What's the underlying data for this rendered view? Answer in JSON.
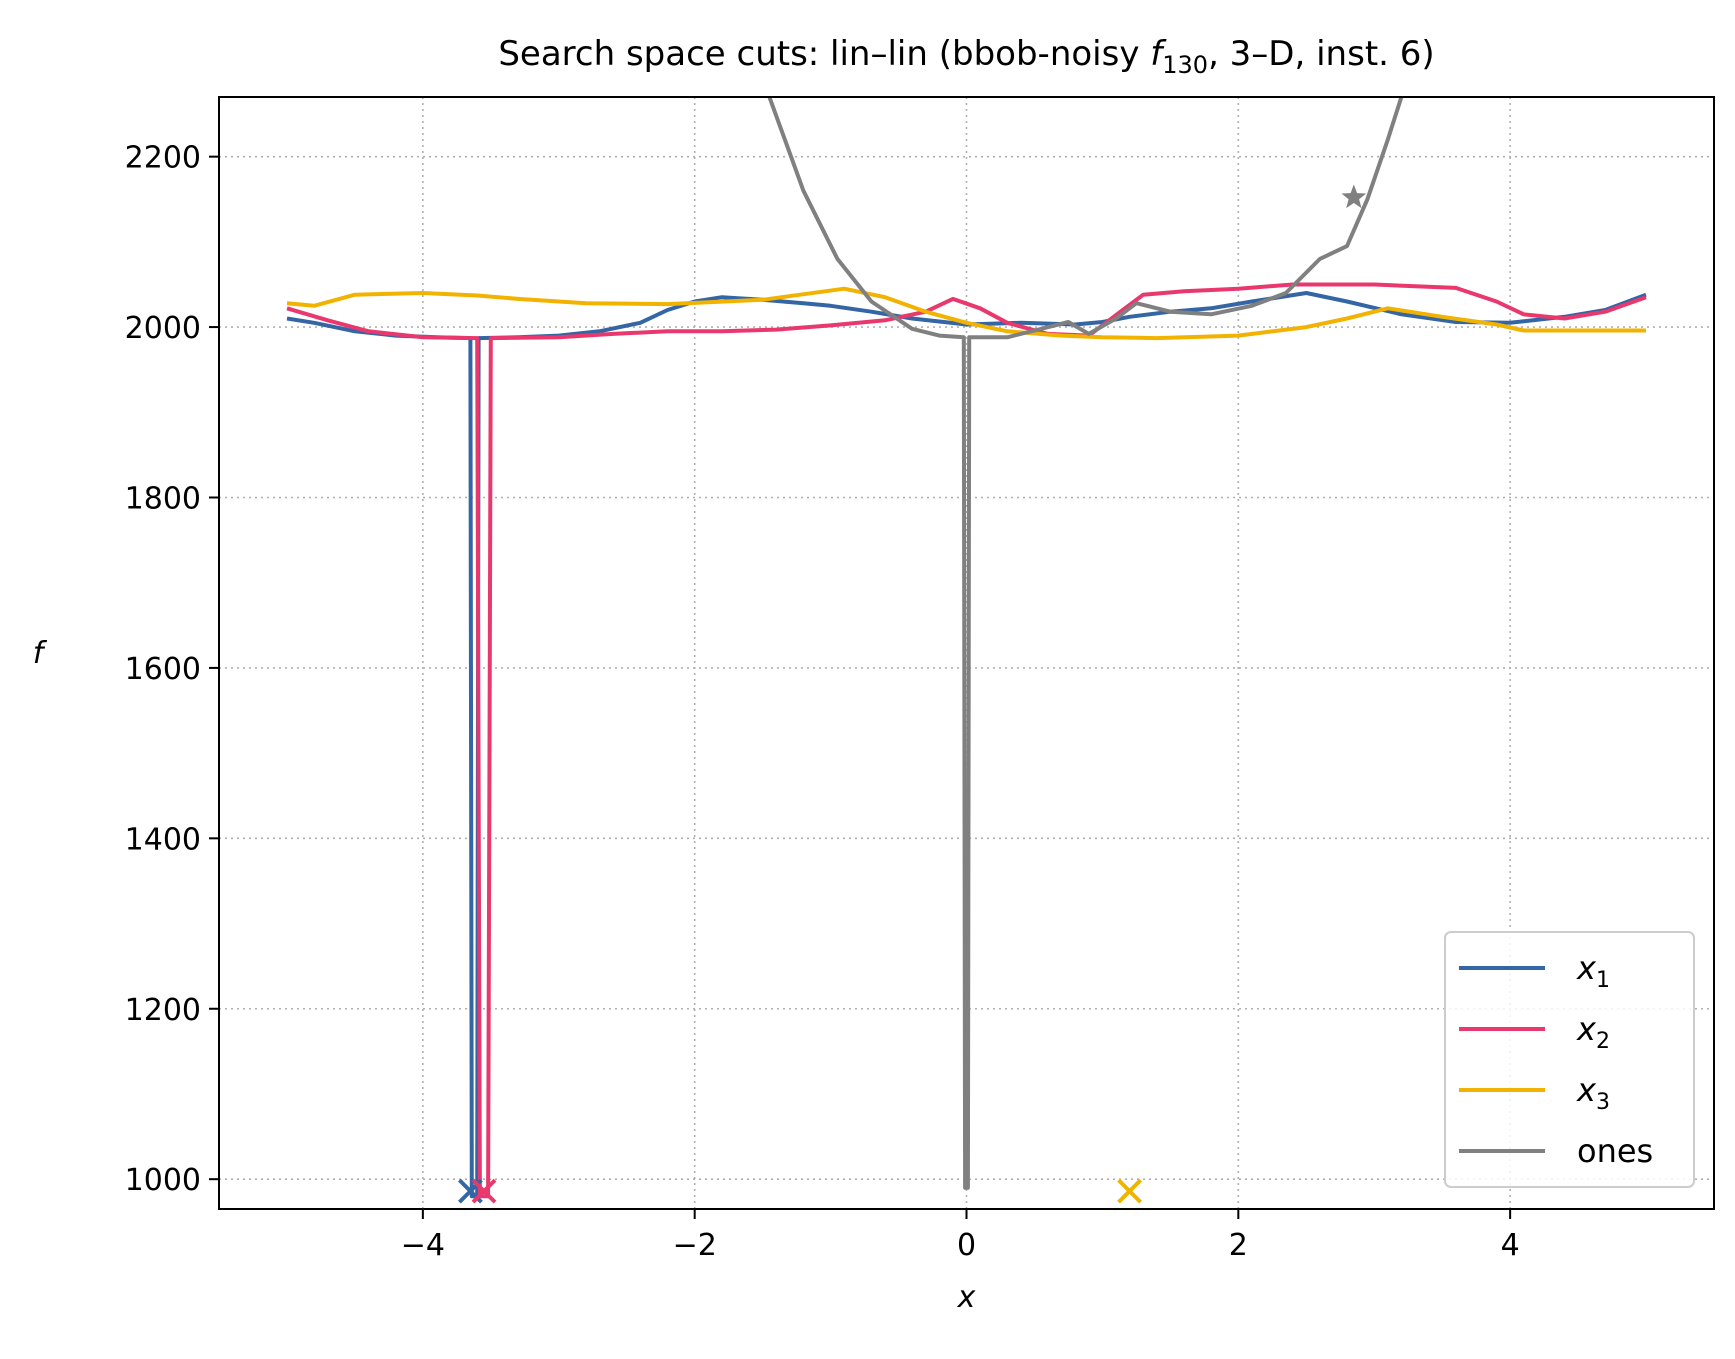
{
  "chart_data": {
    "type": "line",
    "title": {
      "prefix": "Search space cuts: lin–lin (bbob-noisy ",
      "func": "f",
      "func_sub": "130",
      "suffix": ", 3–D, inst. 6)"
    },
    "xlabel": "x",
    "ylabel": "f",
    "xlim": [
      -5.5,
      5.5
    ],
    "ylim": [
      965,
      2270
    ],
    "xticks": [
      -4,
      -2,
      0,
      2,
      4
    ],
    "xtick_labels": [
      "−4",
      "−2",
      "0",
      "2",
      "4"
    ],
    "yticks": [
      1000,
      1200,
      1400,
      1600,
      1800,
      2000,
      2200
    ],
    "ytick_labels": [
      "1000",
      "1200",
      "1400",
      "1600",
      "1800",
      "2000",
      "2200"
    ],
    "grid": true,
    "legend_position": "lower right",
    "series": [
      {
        "name": "x",
        "name_sub": "1",
        "color": "#3465a4",
        "points": [
          [
            -5,
            2010
          ],
          [
            -4.8,
            2005
          ],
          [
            -4.5,
            1995
          ],
          [
            -4.2,
            1990
          ],
          [
            -3.9,
            1988
          ],
          [
            -3.65,
            1987
          ],
          [
            -3.64,
            980
          ],
          [
            -3.6,
            980
          ],
          [
            -3.59,
            1987
          ],
          [
            -3.3,
            1988
          ],
          [
            -3.0,
            1990
          ],
          [
            -2.7,
            1995
          ],
          [
            -2.4,
            2005
          ],
          [
            -2.2,
            2020
          ],
          [
            -2.0,
            2030
          ],
          [
            -1.8,
            2035
          ],
          [
            -1.5,
            2032
          ],
          [
            -1.2,
            2028
          ],
          [
            -1.0,
            2025
          ],
          [
            -0.7,
            2018
          ],
          [
            -0.4,
            2010
          ],
          [
            0,
            2003
          ],
          [
            0.4,
            2005
          ],
          [
            0.8,
            2003
          ],
          [
            1.0,
            2006
          ],
          [
            1.2,
            2012
          ],
          [
            1.5,
            2018
          ],
          [
            1.8,
            2022
          ],
          [
            2.1,
            2030
          ],
          [
            2.5,
            2040
          ],
          [
            2.8,
            2030
          ],
          [
            3.2,
            2015
          ],
          [
            3.6,
            2006
          ],
          [
            4.0,
            2005
          ],
          [
            4.4,
            2012
          ],
          [
            4.7,
            2020
          ],
          [
            5.0,
            2038
          ]
        ],
        "markers": [
          {
            "type": "x",
            "x": -3.65,
            "y": 986
          }
        ]
      },
      {
        "name": "x",
        "name_sub": "2",
        "color": "#e8386d",
        "points": [
          [
            -5,
            2022
          ],
          [
            -4.7,
            2008
          ],
          [
            -4.4,
            1995
          ],
          [
            -4.0,
            1988
          ],
          [
            -3.6,
            1987
          ],
          [
            -3.58,
            980
          ],
          [
            -3.52,
            980
          ],
          [
            -3.5,
            1987
          ],
          [
            -3.0,
            1988
          ],
          [
            -2.6,
            1992
          ],
          [
            -2.2,
            1995
          ],
          [
            -1.8,
            1995
          ],
          [
            -1.4,
            1997
          ],
          [
            -1.0,
            2002
          ],
          [
            -0.6,
            2008
          ],
          [
            -0.3,
            2018
          ],
          [
            -0.1,
            2033
          ],
          [
            0.1,
            2022
          ],
          [
            0.3,
            2005
          ],
          [
            0.6,
            1992
          ],
          [
            0.9,
            1990
          ],
          [
            1.15,
            2020
          ],
          [
            1.3,
            2038
          ],
          [
            1.6,
            2042
          ],
          [
            2.0,
            2045
          ],
          [
            2.4,
            2050
          ],
          [
            3.0,
            2050
          ],
          [
            3.6,
            2046
          ],
          [
            3.9,
            2030
          ],
          [
            4.1,
            2015
          ],
          [
            4.4,
            2010
          ],
          [
            4.7,
            2018
          ],
          [
            5.0,
            2035
          ]
        ],
        "markers": [
          {
            "type": "x",
            "x": -3.55,
            "y": 986
          }
        ]
      },
      {
        "name": "x",
        "name_sub": "3",
        "color": "#f2b200",
        "points": [
          [
            -5,
            2028
          ],
          [
            -4.8,
            2025
          ],
          [
            -4.5,
            2038
          ],
          [
            -4.0,
            2040
          ],
          [
            -3.6,
            2037
          ],
          [
            -3.3,
            2033
          ],
          [
            -2.8,
            2028
          ],
          [
            -2.2,
            2027
          ],
          [
            -1.5,
            2032
          ],
          [
            -0.9,
            2045
          ],
          [
            -0.6,
            2035
          ],
          [
            -0.3,
            2018
          ],
          [
            0,
            2005
          ],
          [
            0.3,
            1995
          ],
          [
            0.7,
            1990
          ],
          [
            1.0,
            1988
          ],
          [
            1.4,
            1987
          ],
          [
            2.0,
            1990
          ],
          [
            2.5,
            2000
          ],
          [
            2.8,
            2010
          ],
          [
            3.1,
            2022
          ],
          [
            3.5,
            2012
          ],
          [
            3.9,
            2003
          ],
          [
            4.1,
            1996
          ],
          [
            4.5,
            1996
          ],
          [
            5.0,
            1996
          ]
        ],
        "markers": [
          {
            "type": "x",
            "x": 1.2,
            "y": 986
          }
        ]
      },
      {
        "name": "ones",
        "name_sub": "",
        "color": "#808080",
        "points": [
          [
            -1.45,
            2270
          ],
          [
            -1.2,
            2160
          ],
          [
            -0.95,
            2080
          ],
          [
            -0.7,
            2030
          ],
          [
            -0.4,
            1998
          ],
          [
            -0.2,
            1990
          ],
          [
            -0.02,
            1988
          ],
          [
            -0.01,
            990
          ],
          [
            0.01,
            990
          ],
          [
            0.02,
            1988
          ],
          [
            0.3,
            1988
          ],
          [
            0.55,
            1998
          ],
          [
            0.75,
            2006
          ],
          [
            0.9,
            1992
          ],
          [
            1.1,
            2010
          ],
          [
            1.25,
            2028
          ],
          [
            1.5,
            2018
          ],
          [
            1.8,
            2015
          ],
          [
            2.1,
            2025
          ],
          [
            2.35,
            2040
          ],
          [
            2.6,
            2080
          ],
          [
            2.8,
            2095
          ],
          [
            2.95,
            2150
          ],
          [
            3.1,
            2220
          ],
          [
            3.2,
            2270
          ]
        ],
        "markers": [
          {
            "type": "star",
            "x": 2.85,
            "y": 2152
          }
        ]
      }
    ]
  }
}
